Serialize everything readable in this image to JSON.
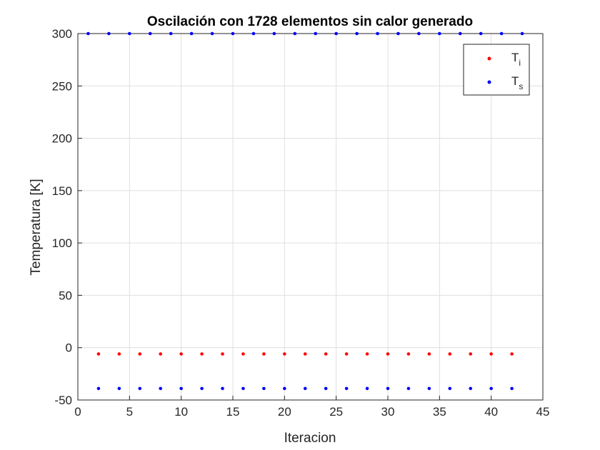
{
  "chart_data": {
    "type": "scatter",
    "title": "Oscilación con 1728 elementos sin calor generado",
    "xlabel": "Iteracion",
    "ylabel": "Temperatura [K]",
    "xlim": [
      0,
      45
    ],
    "ylim": [
      -50,
      300
    ],
    "xticks": [
      0,
      5,
      10,
      15,
      20,
      25,
      30,
      35,
      40,
      45
    ],
    "yticks": [
      -50,
      0,
      50,
      100,
      150,
      200,
      250,
      300
    ],
    "grid": true,
    "legend_position": "top-right",
    "series": [
      {
        "name": "Ti",
        "label_main": "T",
        "label_sub": "i",
        "color": "#ff0000",
        "x": [
          2,
          4,
          6,
          8,
          10,
          12,
          14,
          16,
          18,
          20,
          22,
          24,
          26,
          28,
          30,
          32,
          34,
          36,
          38,
          40,
          42
        ],
        "y": [
          -6,
          -6,
          -6,
          -6,
          -6,
          -6,
          -6,
          -6,
          -6,
          -6,
          -6,
          -6,
          -6,
          -6,
          -6,
          -6,
          -6,
          -6,
          -6,
          -6,
          -6
        ]
      },
      {
        "name": "Ts",
        "label_main": "T",
        "label_sub": "s",
        "color": "#0000ff",
        "x": [
          1,
          3,
          5,
          7,
          9,
          11,
          13,
          15,
          17,
          19,
          21,
          23,
          25,
          27,
          29,
          31,
          33,
          35,
          37,
          39,
          41,
          43,
          2,
          4,
          6,
          8,
          10,
          12,
          14,
          16,
          18,
          20,
          22,
          24,
          26,
          28,
          30,
          32,
          34,
          36,
          38,
          40,
          42
        ],
        "y": [
          300,
          300,
          300,
          300,
          300,
          300,
          300,
          300,
          300,
          300,
          300,
          300,
          300,
          300,
          300,
          300,
          300,
          300,
          300,
          300,
          300,
          300,
          -39,
          -39,
          -39,
          -39,
          -39,
          -39,
          -39,
          -39,
          -39,
          -39,
          -39,
          -39,
          -39,
          -39,
          -39,
          -39,
          -39,
          -39,
          -39,
          -39,
          -39
        ]
      }
    ]
  }
}
